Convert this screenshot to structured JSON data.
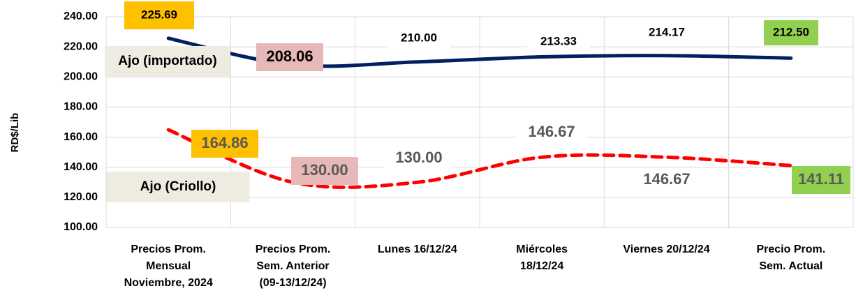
{
  "chart_data": {
    "type": "line",
    "y_label": "RD$/Lib",
    "categories": [
      [
        "Precios Prom.",
        "Mensual",
        "Noviembre, 2024"
      ],
      [
        "Precios Prom.",
        "Sem. Anterior",
        "(09-13/12/24)"
      ],
      [
        "Lunes 16/12/24"
      ],
      [
        "Miércoles",
        "18/12/24"
      ],
      [
        "Viernes 20/12/24"
      ],
      [
        "Precio Prom.",
        "Sem. Actual"
      ]
    ],
    "series": [
      {
        "name": "Ajo (importado)",
        "color": "#002060",
        "dashed": false,
        "values": [
          225.69,
          208.06,
          210.0,
          213.33,
          214.17,
          212.5
        ],
        "value_labels": [
          "225.69",
          "208.06",
          "210.00",
          "213.33",
          "214.17",
          "212.50"
        ],
        "label_colors": [
          "#ffc000",
          "#e6b8b7",
          "#ffffff",
          "#ffffff",
          "#ffffff",
          "#92d050"
        ]
      },
      {
        "name": "Ajo (Criollo)",
        "color": "#ff0000",
        "dashed": true,
        "values": [
          164.86,
          130.0,
          130.0,
          146.67,
          146.67,
          141.11
        ],
        "value_labels": [
          "164.86",
          "130.00",
          "130.00",
          "146.67",
          "146.67",
          "141.11"
        ],
        "label_colors": [
          "#ffc000",
          "#e6b8b7",
          "#ffffff",
          "#ffffff",
          "#ffffff",
          "#92d050"
        ]
      }
    ],
    "ylim": [
      100,
      240
    ],
    "yticks": [
      {
        "value": 100,
        "label": "100.00"
      },
      {
        "value": 120,
        "label": "120.00"
      },
      {
        "value": 140,
        "label": "140.00"
      },
      {
        "value": 160,
        "label": "160.00"
      },
      {
        "value": 180,
        "label": "180.00"
      },
      {
        "value": 200,
        "label": "200.00"
      },
      {
        "value": 220,
        "label": "220.00"
      },
      {
        "value": 240,
        "label": "240.00"
      }
    ],
    "grid": true
  }
}
